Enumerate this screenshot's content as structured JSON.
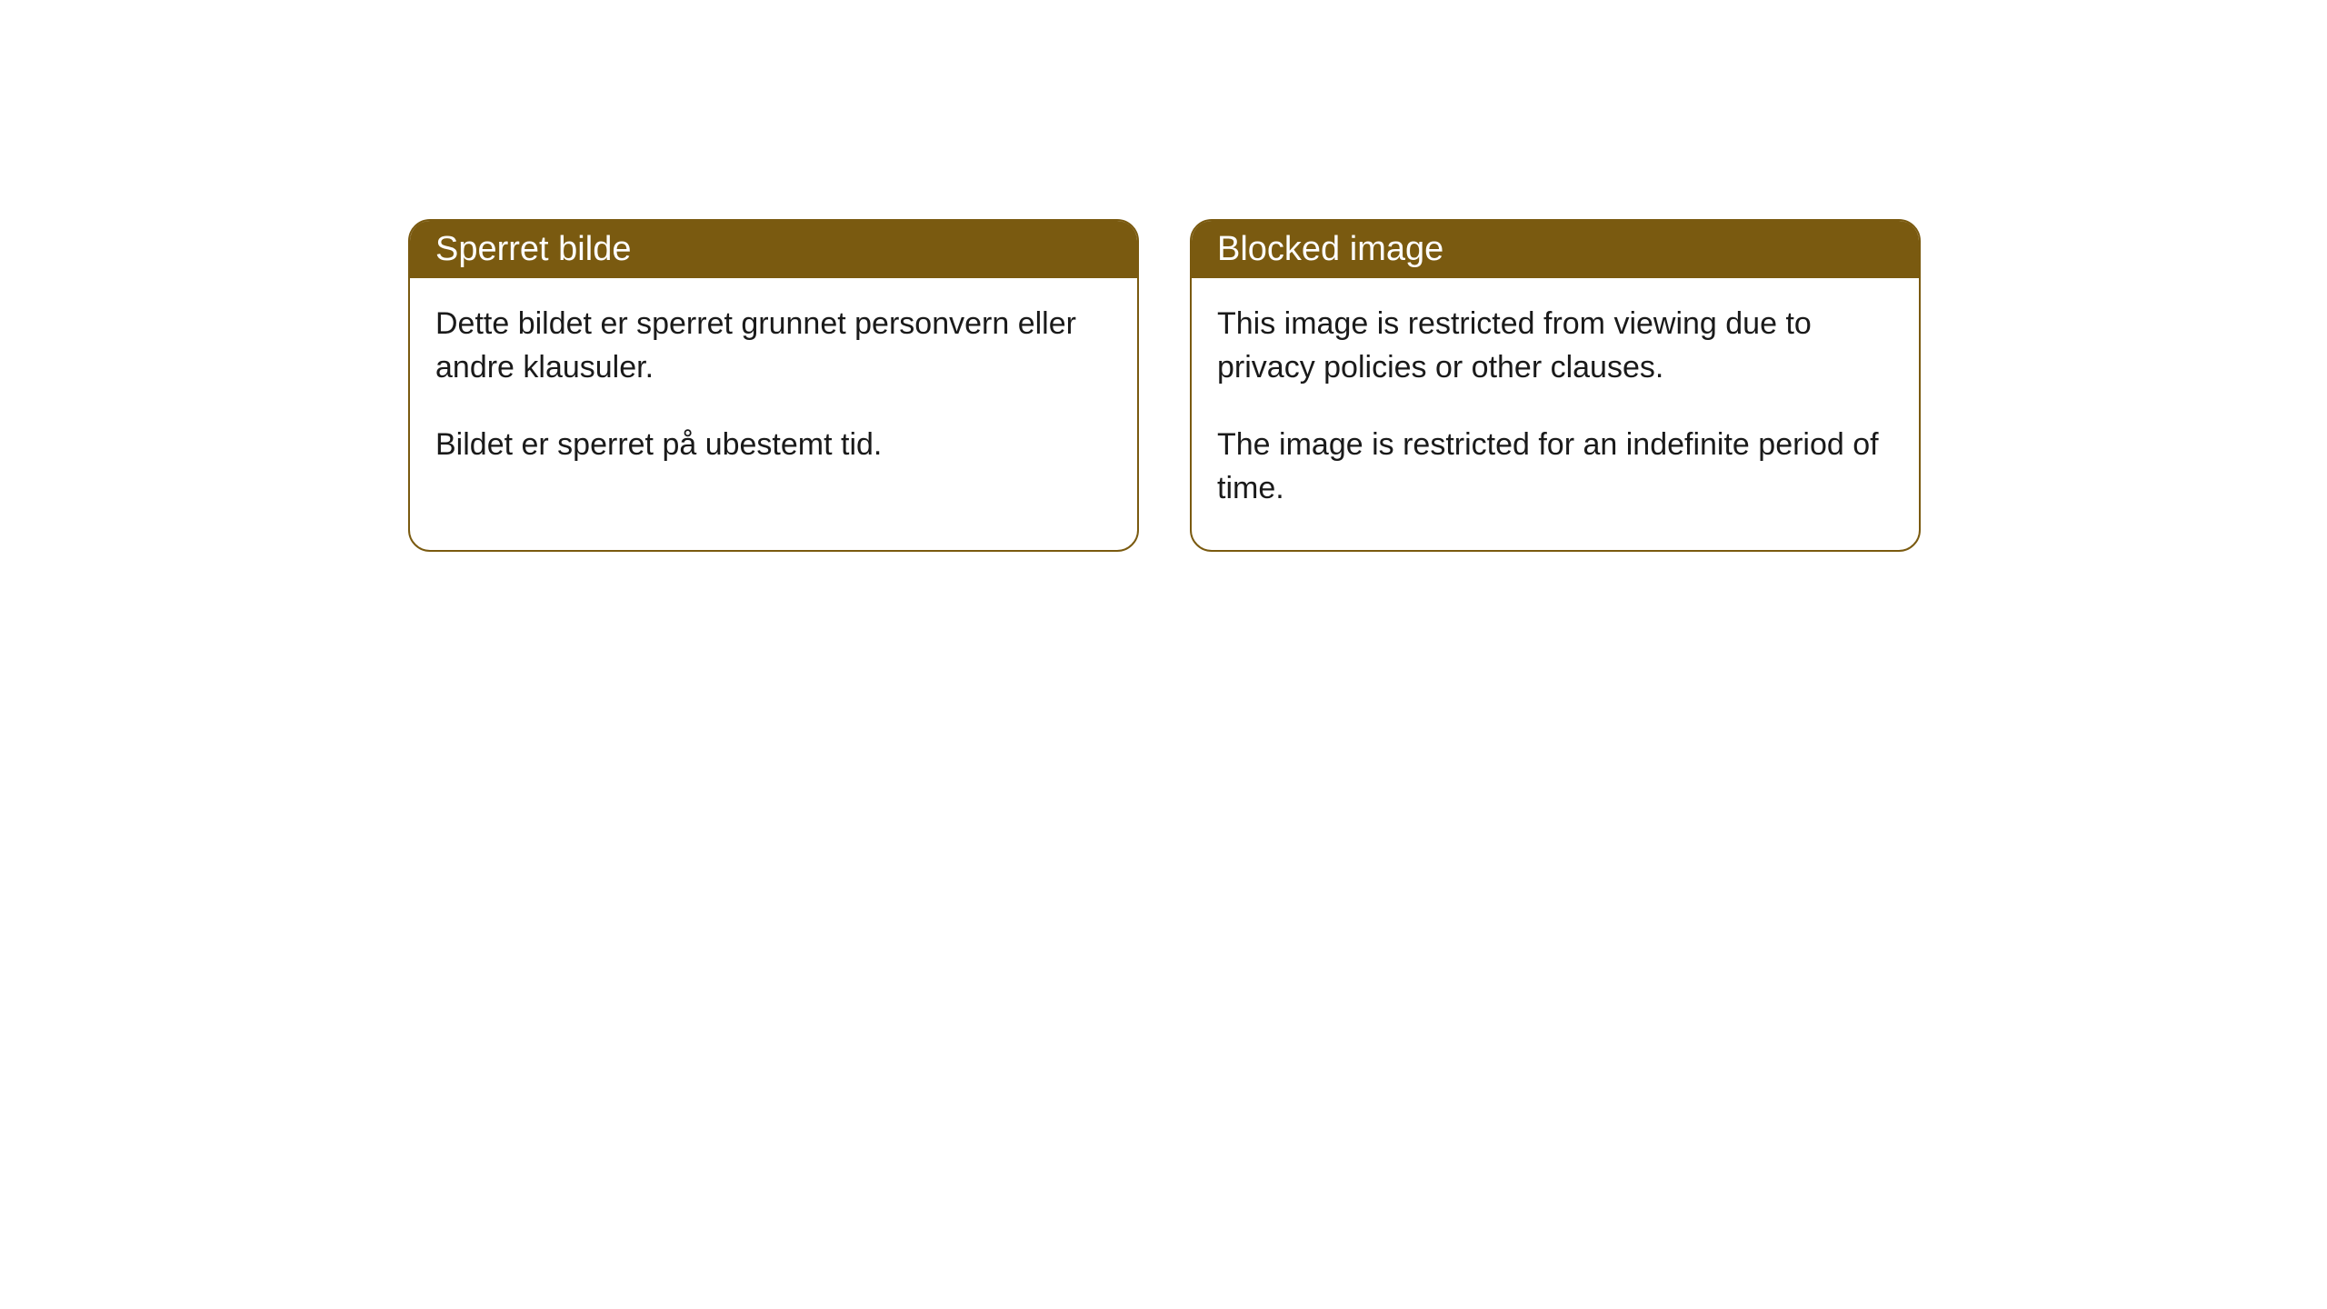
{
  "cards": [
    {
      "title": "Sperret bilde",
      "paragraph1": "Dette bildet er sperret grunnet personvern eller andre klausuler.",
      "paragraph2": "Bildet er sperret på ubestemt tid."
    },
    {
      "title": "Blocked image",
      "paragraph1": "This image is restricted from viewing due to privacy policies or other clauses.",
      "paragraph2": "The image is restricted for an indefinite period of time."
    }
  ],
  "styling": {
    "header_background": "#7a5a10",
    "header_text_color": "#ffffff",
    "border_color": "#7a5a10",
    "card_background": "#ffffff",
    "body_text_color": "#1a1a1a",
    "border_radius": 24,
    "header_fontsize": 38,
    "body_fontsize": 34
  }
}
